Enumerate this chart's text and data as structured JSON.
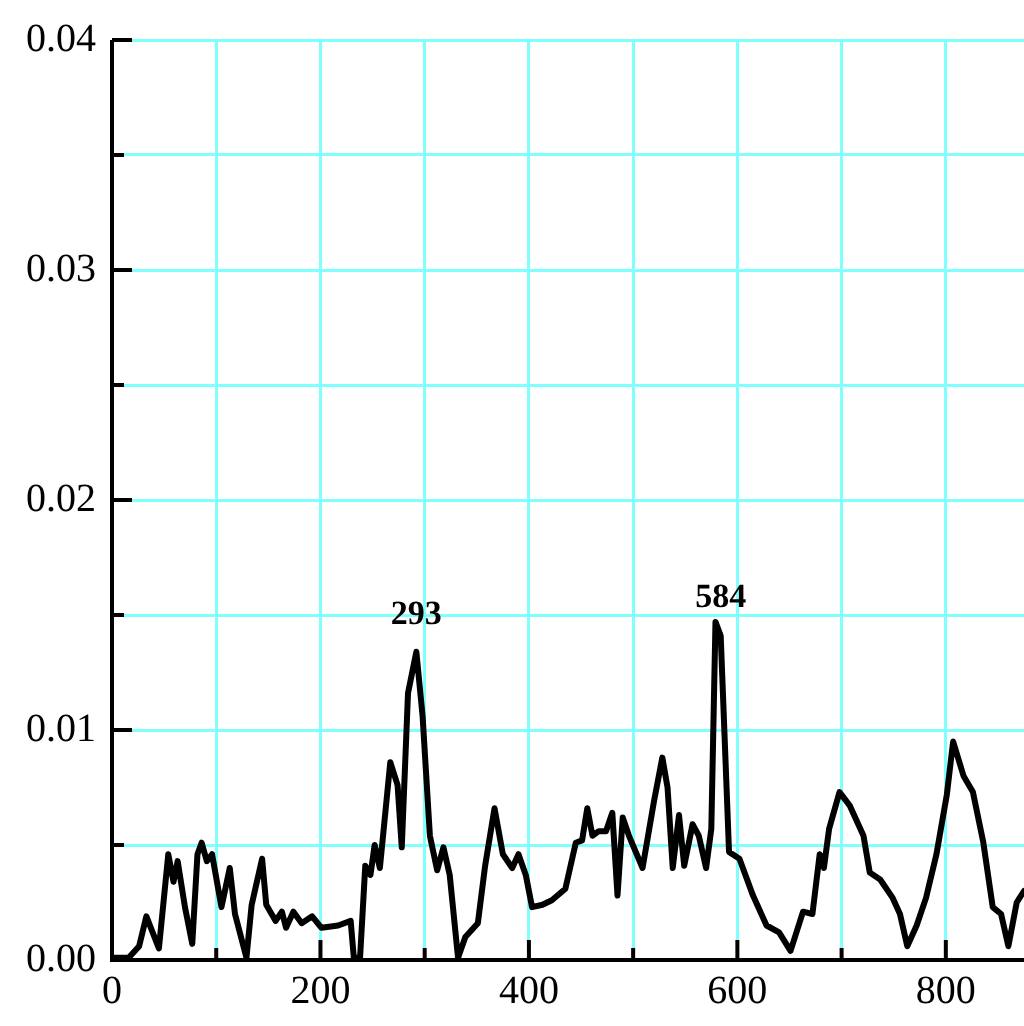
{
  "chart_data": {
    "type": "line",
    "x": [
      0,
      16,
      26,
      33,
      45,
      54,
      59,
      63,
      70,
      77,
      82,
      86,
      91,
      96,
      105,
      113,
      118,
      129,
      134,
      144,
      148,
      157,
      163,
      167,
      174,
      182,
      192,
      201,
      217,
      229,
      232,
      238,
      243,
      248,
      252,
      257,
      267,
      274,
      278,
      284,
      292,
      298,
      305,
      312,
      318,
      324,
      332,
      339,
      351,
      358,
      367,
      375,
      384,
      390,
      397,
      403,
      413,
      422,
      435,
      445,
      451,
      456,
      461,
      467,
      474,
      480,
      485,
      490,
      496,
      509,
      520,
      528,
      533,
      538,
      544,
      549,
      557,
      563,
      570,
      575,
      579,
      584,
      592,
      602,
      615,
      628,
      640,
      651,
      663,
      672,
      679,
      683,
      688,
      698,
      708,
      721,
      727,
      737,
      749,
      756,
      763,
      772,
      781,
      791,
      801,
      807,
      817,
      826,
      836,
      845,
      853,
      860,
      868,
      875
    ],
    "series": [
      {
        "color": "#000000",
        "values": [
          0.0001,
          0.0001,
          0.0006,
          0.0019,
          0.0005,
          0.0046,
          0.0034,
          0.0043,
          0.0023,
          0.0007,
          0.0046,
          0.0051,
          0.0043,
          0.0046,
          0.0023,
          0.004,
          0.002,
          0.0001,
          0.0024,
          0.0044,
          0.0024,
          0.0017,
          0.0021,
          0.0014,
          0.0021,
          0.0016,
          0.0019,
          0.0014,
          0.0015,
          0.0017,
          0.0001,
          0.0001,
          0.0041,
          0.0037,
          0.005,
          0.004,
          0.0086,
          0.0076,
          0.0049,
          0.0116,
          0.0134,
          0.0106,
          0.0054,
          0.0039,
          0.0049,
          0.0037,
          0.0001,
          0.001,
          0.0016,
          0.0041,
          0.0066,
          0.0046,
          0.004,
          0.0046,
          0.0037,
          0.0023,
          0.0024,
          0.0026,
          0.0031,
          0.0051,
          0.0052,
          0.0066,
          0.0054,
          0.0056,
          0.0056,
          0.0064,
          0.0028,
          0.0062,
          0.0054,
          0.004,
          0.0069,
          0.0088,
          0.0075,
          0.004,
          0.0063,
          0.0041,
          0.0059,
          0.0054,
          0.004,
          0.0057,
          0.0147,
          0.0141,
          0.0047,
          0.0044,
          0.0028,
          0.0015,
          0.0012,
          0.0004,
          0.0021,
          0.002,
          0.0046,
          0.004,
          0.0057,
          0.0073,
          0.0067,
          0.0054,
          0.0038,
          0.0035,
          0.0027,
          0.002,
          0.0006,
          0.0015,
          0.0027,
          0.0046,
          0.0072,
          0.0095,
          0.008,
          0.0073,
          0.0051,
          0.0023,
          0.002,
          0.0006,
          0.0025,
          0.003
        ]
      }
    ],
    "xlim": [
      0,
      875
    ],
    "xticks": [
      0,
      {
        "value": 100,
        "label": null
      },
      200,
      {
        "value": 300,
        "label": null
      },
      400,
      {
        "value": 500,
        "label": null
      },
      600,
      {
        "value": 700,
        "label": null
      },
      800
    ],
    "ylim": [
      0,
      0.04
    ],
    "yticks": [
      {
        "value": 0,
        "label": "0.00"
      },
      {
        "value": 0.005,
        "label": null
      },
      {
        "value": 0.01,
        "label": "0.01"
      },
      {
        "value": 0.015,
        "label": null
      },
      {
        "value": 0.02,
        "label": "0.02"
      },
      {
        "value": 0.025,
        "label": null
      },
      {
        "value": 0.03,
        "label": "0.03"
      },
      {
        "value": 0.035,
        "label": null
      },
      {
        "value": 0.04,
        "label": "0.04"
      }
    ],
    "grid": true,
    "legend": false,
    "marker": "none",
    "line_style": "solid",
    "annotations": [
      {
        "text": "293",
        "x": 292,
        "y": 0.0134
      },
      {
        "text": "584",
        "x": 584,
        "y": 0.0141
      }
    ]
  }
}
